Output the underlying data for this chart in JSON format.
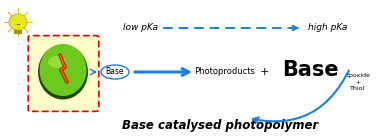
{
  "bg_color": "#ffffff",
  "blue": "#1a7fe8",
  "green_outer": "#6dca1c",
  "green_inner": "#b0e850",
  "green_dark": "#1a4a00",
  "red_dashed_box": "#dd0000",
  "title": "Base catalysed photopolymer",
  "top_left_label": "low pKa",
  "top_right_label": "high pKa",
  "base_label": "Base",
  "photoproducts_label": "Photoproducts",
  "plus_label": "+",
  "big_base_label": "Base",
  "epoxide_thiol_label": "Epoxide\n+\nThiol",
  "figsize": [
    3.78,
    1.39
  ],
  "dpi": 100
}
